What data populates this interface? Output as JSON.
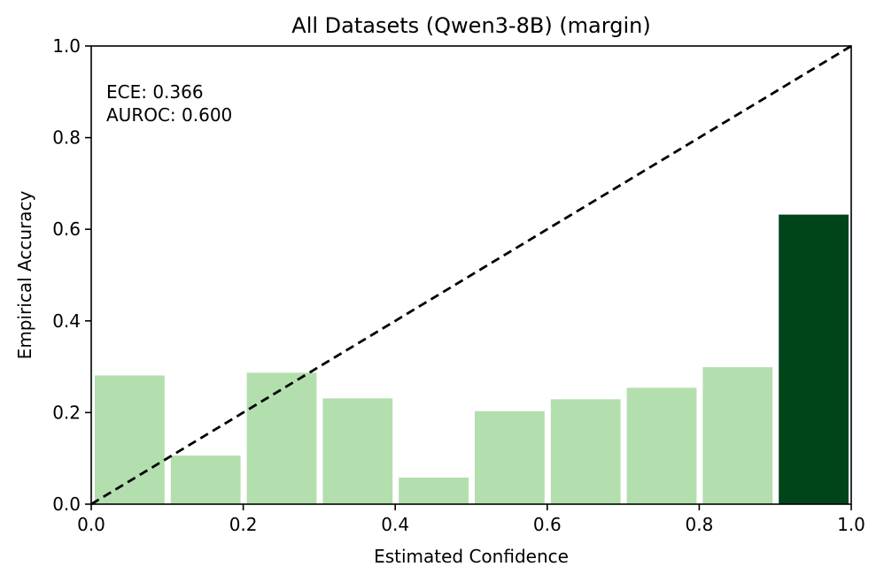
{
  "chart_data": {
    "type": "bar",
    "title": "All Datasets (Qwen3-8B) (margin)",
    "xlabel": "Estimated Confidence",
    "ylabel": "Empirical Accuracy",
    "xlim": [
      0.0,
      1.0
    ],
    "ylim": [
      0.0,
      1.0
    ],
    "xticks": [
      "0.0",
      "0.2",
      "0.4",
      "0.6",
      "0.8",
      "1.0"
    ],
    "yticks": [
      "0.0",
      "0.2",
      "0.4",
      "0.6",
      "0.8",
      "1.0"
    ],
    "bin_width": 0.1,
    "bins": [
      {
        "x0": 0.0,
        "x1": 0.1,
        "accuracy": 0.281
      },
      {
        "x0": 0.1,
        "x1": 0.2,
        "accuracy": 0.106
      },
      {
        "x0": 0.2,
        "x1": 0.3,
        "accuracy": 0.287
      },
      {
        "x0": 0.3,
        "x1": 0.4,
        "accuracy": 0.231
      },
      {
        "x0": 0.4,
        "x1": 0.5,
        "accuracy": 0.058
      },
      {
        "x0": 0.5,
        "x1": 0.6,
        "accuracy": 0.203
      },
      {
        "x0": 0.6,
        "x1": 0.7,
        "accuracy": 0.229
      },
      {
        "x0": 0.7,
        "x1": 0.8,
        "accuracy": 0.254
      },
      {
        "x0": 0.8,
        "x1": 0.9,
        "accuracy": 0.299
      },
      {
        "x0": 0.9,
        "x1": 1.0,
        "accuracy": 0.632
      }
    ],
    "bar_colors": [
      "#b3dfae",
      "#b3dfae",
      "#b3dfae",
      "#b3dfae",
      "#b3dfae",
      "#b3dfae",
      "#b3dfae",
      "#b3dfae",
      "#b3dfae",
      "#00441b"
    ],
    "diagonal": {
      "from": [
        0.0,
        0.0
      ],
      "to": [
        1.0,
        1.0
      ],
      "style": "dashed",
      "color": "#000000"
    },
    "annotations": [
      "ECE: 0.366",
      "AUROC: 0.600"
    ],
    "grid": false
  }
}
